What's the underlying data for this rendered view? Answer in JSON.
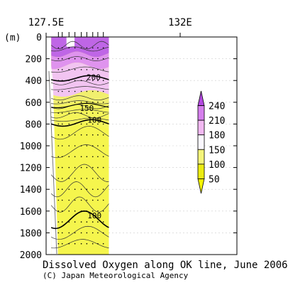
{
  "chart_data": {
    "type": "contour",
    "title": "Dissolved Oxygen along OK line, June 2006",
    "credit": "(C) Japan Meteorological Agency",
    "y_unit_label": "(m)",
    "x_ticks_labeled": [
      "127.5E",
      "132E"
    ],
    "xlim": [
      127.5,
      132.0
    ],
    "ylim": [
      2000,
      0
    ],
    "y_ticks": [
      0,
      200,
      400,
      600,
      800,
      1000,
      1200,
      1400,
      1600,
      1800,
      2000
    ],
    "y_tick_labels": [
      "0",
      "200",
      "400",
      "600",
      "800",
      "1000",
      "1200",
      "1400",
      "1600",
      "1800",
      "2000"
    ],
    "station_longitudes": [
      127.79,
      127.88,
      128.04,
      128.18,
      128.33,
      128.46,
      128.6,
      128.72,
      128.85
    ],
    "section_longitude_range": [
      127.62,
      128.98
    ],
    "contour_levels": [
      50,
      100,
      150,
      180,
      210,
      240
    ],
    "labeled_contours": [
      {
        "value": "200",
        "lon": 128.62,
        "depth": 370
      },
      {
        "value": "150",
        "lon": 128.46,
        "depth": 655
      },
      {
        "value": "100",
        "lon": 128.64,
        "depth": 760
      },
      {
        "value": "100",
        "lon": 128.64,
        "depth": 1640
      }
    ],
    "colorbar": {
      "labels": [
        "240",
        "210",
        "180",
        "150",
        "100",
        "50"
      ],
      "colors": [
        "#b348e0",
        "#d67fed",
        "#f2b9f2",
        "#fbf8ff",
        "#f5f57a",
        "#ecec12",
        "#f5f500"
      ]
    },
    "colors": {
      "above_210": "#bf66e6",
      "band_180_210": "#df93ee",
      "band_150_180": "#f2c4f1",
      "band_100_150": "#f1ef6e",
      "band_50_100": "#f5f55a",
      "deep_fill": "#f5f54d",
      "land_bottom": "#ffffff"
    }
  }
}
